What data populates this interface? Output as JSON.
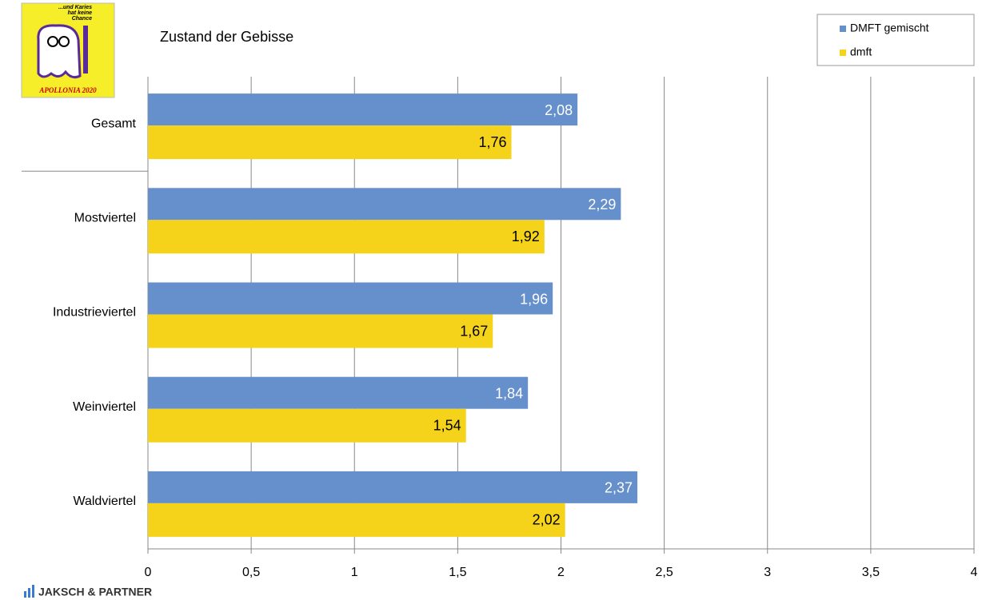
{
  "chart_data": {
    "type": "hbar",
    "title": "Zustand der Gebisse",
    "categories": [
      "Gesamt",
      "Mostviertel",
      "Industrieviertel",
      "Weinviertel",
      "Waldviertel"
    ],
    "series": [
      {
        "name": "DMFT gemischt",
        "color": "#6590cb",
        "values": [
          2.08,
          2.29,
          1.96,
          1.84,
          2.37
        ],
        "value_labels": [
          "2,08",
          "2,29",
          "1,96",
          "1,84",
          "2,37"
        ]
      },
      {
        "name": "dmft",
        "color": "#f5d31a",
        "values": [
          1.76,
          1.92,
          1.67,
          1.54,
          2.02
        ],
        "value_labels": [
          "1,76",
          "1,92",
          "1,67",
          "1,54",
          "2,02"
        ]
      }
    ],
    "xlim": [
      0,
      4
    ],
    "xticks": [
      0,
      {
        "value": 0.5,
        "label": "0,5"
      },
      1,
      {
        "value": 1.5,
        "label": "1,5"
      },
      2,
      {
        "value": 2.5,
        "label": "2,5"
      },
      3,
      {
        "value": 3.5,
        "label": "3,5"
      },
      4
    ],
    "grid": true,
    "legend": "top-right"
  },
  "logo": {
    "slogan": [
      "...und Karies",
      "hat keine",
      "Chance"
    ],
    "name": "APOLLONIA 2020"
  },
  "footer": {
    "company": "JAKSCH & PARTNER"
  }
}
